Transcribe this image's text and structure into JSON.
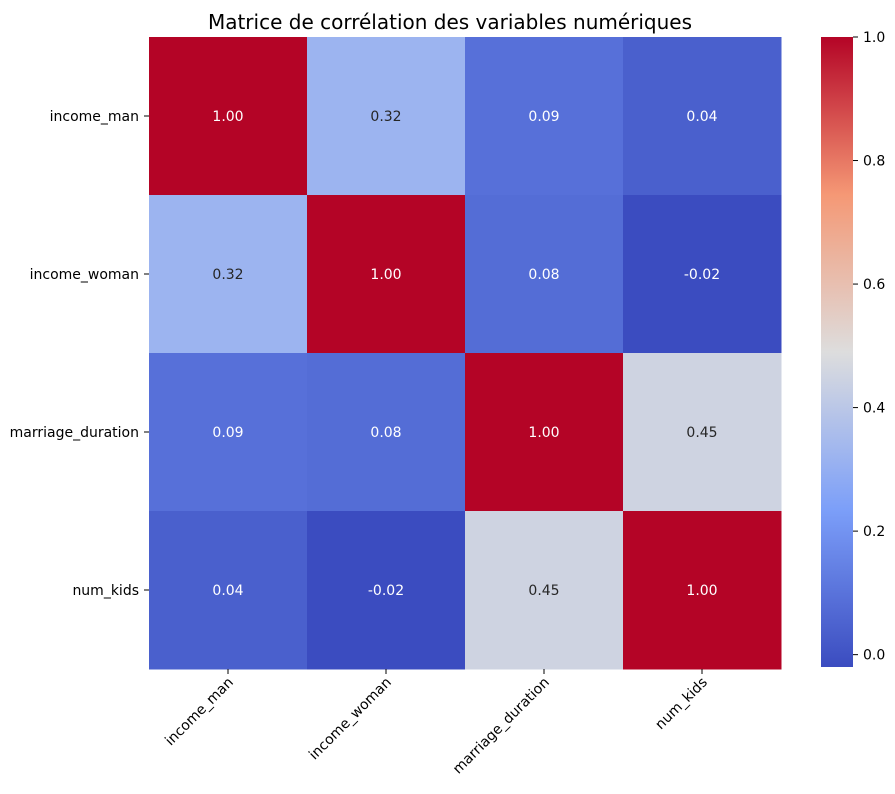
{
  "chart_data": {
    "type": "heatmap",
    "title": "Matrice de corrélation des variables numériques",
    "x_categories": [
      "income_man",
      "income_woman",
      "marriage_duration",
      "num_kids"
    ],
    "y_categories": [
      "income_man",
      "income_woman",
      "marriage_duration",
      "num_kids"
    ],
    "values": [
      [
        1.0,
        0.32,
        0.09,
        0.04
      ],
      [
        0.32,
        1.0,
        0.08,
        -0.02
      ],
      [
        0.09,
        0.08,
        1.0,
        0.45
      ],
      [
        0.04,
        -0.02,
        0.45,
        1.0
      ]
    ],
    "cell_labels": [
      [
        "1.00",
        "0.32",
        "0.09",
        "0.04"
      ],
      [
        "0.32",
        "1.00",
        "0.08",
        "-0.02"
      ],
      [
        "0.09",
        "0.08",
        "1.00",
        "0.45"
      ],
      [
        "0.04",
        "-0.02",
        "0.45",
        "1.00"
      ]
    ],
    "colormap": "coolwarm",
    "colorbar": {
      "vmin": -0.02,
      "vmax": 1.0,
      "ticks": [
        0.0,
        0.2,
        0.4,
        0.6,
        0.8,
        1.0
      ],
      "tick_labels": [
        "0.0",
        "0.2",
        "0.4",
        "0.6",
        "0.8",
        "1.0"
      ]
    },
    "xlabel": "",
    "ylabel": "",
    "x_tick_rotation": 45
  }
}
